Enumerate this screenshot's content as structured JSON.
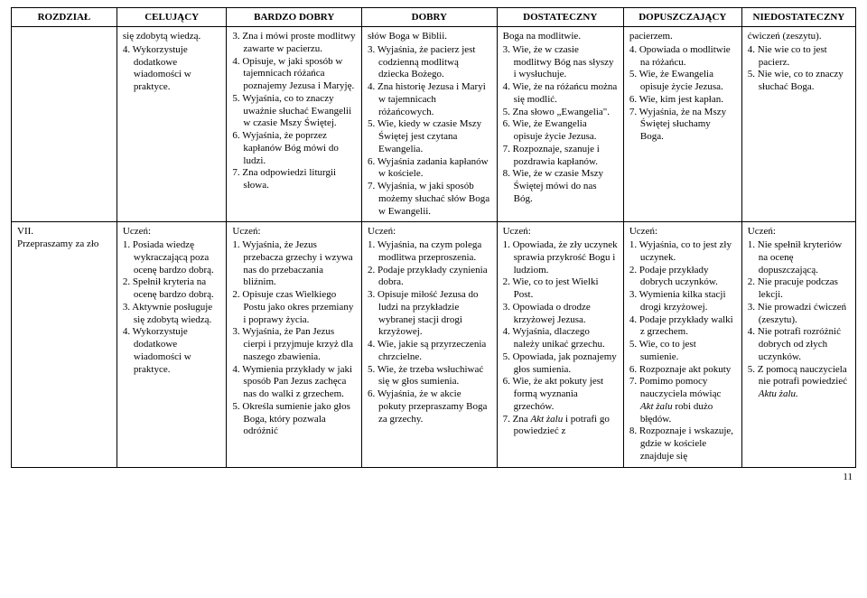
{
  "headers": [
    "ROZDZIAŁ",
    "CELUJĄCY",
    "BARDZO DOBRY",
    "DOBRY",
    "DOSTATECZNY",
    "DOPUSZCZAJĄCY",
    "NIEDOSTATECZNY"
  ],
  "uczen_label": "Uczeń:",
  "page_number": "11",
  "row1": {
    "col0": "",
    "col1_frag": "się zdobytą wiedzą.",
    "col1_items": [
      "4. Wykorzystuje dodatkowe wiadomości w praktyce."
    ],
    "col2_items": [
      "3. Zna i mówi proste modlitwy zawarte w pacierzu.",
      "4. Opisuje, w jaki sposób w tajemnicach różańca poznajemy Jezusa i Maryję.",
      "5. Wyjaśnia, co to znaczy uważnie słuchać Ewangelii w czasie Mszy Świętej.",
      "6. Wyjaśnia, że poprzez kapłanów Bóg mówi do ludzi.",
      "7. Zna odpowiedzi liturgii słowa."
    ],
    "col3_frag": "słów Boga w Biblii.",
    "col3_items": [
      "3. Wyjaśnia, że pacierz jest codzienną modlitwą dziecka Bożego.",
      "4. Zna historię Jezusa i Maryi w tajemnicach różańcowych.",
      "5. Wie, kiedy w czasie Mszy Świętej jest czytana Ewangelia.",
      "6. Wyjaśnia zadania kapłanów w kościele.",
      "7. Wyjaśnia, w jaki sposób możemy słuchać słów Boga w Ewangelii."
    ],
    "col4_frag": "Boga na modlitwie.",
    "col4_items": [
      "3. Wie, że w czasie modlitwy Bóg nas słyszy i wysłuchuje.",
      "4. Wie, że na różańcu można się modlić.",
      "5. Zna słowo „Ewangelia\".",
      "6. Wie, że Ewangelia opisuje życie Jezusa.",
      "7. Rozpoznaje, szanuje i pozdrawia kapłanów.",
      "8. Wie, że w czasie Mszy Świętej mówi do nas Bóg."
    ],
    "col5_frag": "pacierzem.",
    "col5_items": [
      "4. Opowiada o modlitwie na różańcu.",
      "5. Wie, że Ewangelia opisuje życie Jezusa.",
      "6. Wie, kim jest kapłan.",
      "7. Wyjaśnia, że na Mszy Świętej słuchamy Boga."
    ],
    "col6_frag": "ćwiczeń (zeszytu).",
    "col6_items": [
      "4. Nie wie co to jest pacierz.",
      "5. Nie wie, co to znaczy słuchać Boga."
    ]
  },
  "row2": {
    "col0": "VII.\nPrzepraszamy za zło",
    "col1_items": [
      "1. Posiada wiedzę wykraczającą poza ocenę bardzo dobrą.",
      "2. Spełnił kryteria na ocenę bardzo dobrą.",
      "3. Aktywnie posługuje się zdobytą wiedzą.",
      "4. Wykorzystuje dodatkowe wiadomości w praktyce."
    ],
    "col2_items": [
      "1. Wyjaśnia, że Jezus przebacza grzechy i wzywa nas do przebaczania bliźnim.",
      "2. Opisuje czas Wielkiego Postu jako okres przemiany i poprawy życia.",
      "3. Wyjaśnia, że Pan Jezus cierpi i przyjmuje krzyż dla naszego zbawienia.",
      "4. Wymienia przykłady w jaki sposób Pan Jezus zachęca nas do walki z grzechem.",
      "5. Określa sumienie jako głos Boga, który pozwala odróżnić"
    ],
    "col3_items": [
      "1. Wyjaśnia, na czym polega modlitwa przeproszenia.",
      "2. Podaje przykłady czynienia dobra.",
      "3. Opisuje miłość Jezusa do ludzi na przykładzie wybranej stacji drogi krzyżowej.",
      "4. Wie, jakie są przyrzeczenia chrzcielne.",
      "5. Wie, że trzeba wsłuchiwać się w głos sumienia.",
      "6. Wyjaśnia, że w akcie pokuty przepraszamy Boga za grzechy."
    ],
    "col4_items": [
      "1. Opowiada, że zły uczynek sprawia przykrość Bogu i ludziom.",
      "2. Wie, co to jest Wielki Post.",
      "3. Opowiada o drodze krzyżowej Jezusa.",
      "4. Wyjaśnia, dlaczego należy unikać grzechu.",
      "5. Opowiada, jak poznajemy głos sumienia.",
      "6. Wie, że akt pokuty jest formą wyznania grzechów.",
      "7. Zna |Akt żalu| i potrafi go powiedzieć z"
    ],
    "col5_items": [
      "1. Wyjaśnia, co to jest zły uczynek.",
      "2. Podaje przykłady dobrych uczynków.",
      "3. Wymienia kilka stacji drogi krzyżowej.",
      "4. Podaje przykłady walki z grzechem.",
      "5. Wie, co to jest sumienie.",
      "6. Rozpoznaje akt pokuty",
      "7. Pomimo pomocy nauczyciela mówiąc |Akt żalu| robi dużo błędów.",
      "8. Rozpoznaje i wskazuje, gdzie w kościele znajduje się"
    ],
    "col6_items": [
      "1. Nie spełnił kryteriów na ocenę dopuszczającą.",
      "2. Nie pracuje podczas lekcji.",
      "3. Nie prowadzi ćwiczeń (zeszytu).",
      "4. Nie potrafi rozróżnić dobrych od złych uczynków.",
      "5. Z pomocą nauczyciela nie potrafi powiedzieć |Aktu żalu.|"
    ]
  }
}
